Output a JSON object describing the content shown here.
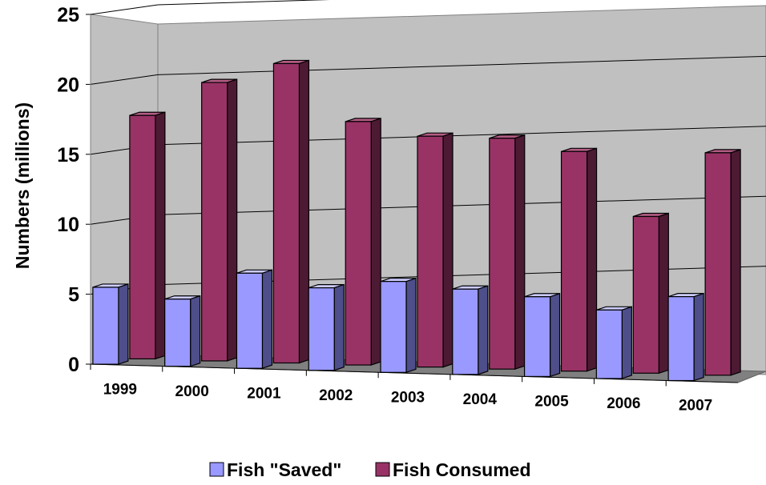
{
  "chart_data": {
    "type": "bar",
    "style": "3d-clustered",
    "categories": [
      "1999",
      "2000",
      "2001",
      "2002",
      "2003",
      "2004",
      "2005",
      "2006",
      "2007"
    ],
    "series": [
      {
        "name": "Fish \"Saved\"",
        "values": [
          5.5,
          4.8,
          6.8,
          5.9,
          6.5,
          6.1,
          5.7,
          4.9,
          6.0
        ]
      },
      {
        "name": "Fish Consumed",
        "values": [
          17.4,
          19.9,
          21.4,
          17.4,
          16.5,
          16.5,
          15.7,
          11.2,
          15.9
        ]
      }
    ],
    "ylabel": "Numbers (millions)",
    "xlabel": "",
    "ylim": [
      0,
      25
    ],
    "yticks": [
      0,
      5,
      10,
      15,
      20,
      25
    ],
    "grid": true,
    "legend": "bottom",
    "colors": {
      "saved_front": "#9999ff",
      "saved_side": "#4e4e8a",
      "saved_top": "#ccccff",
      "consumed_front": "#993366",
      "consumed_side": "#4d1a33",
      "consumed_top": "#b35c85",
      "wall": "#c0c0c0",
      "floor": "#808080"
    }
  }
}
